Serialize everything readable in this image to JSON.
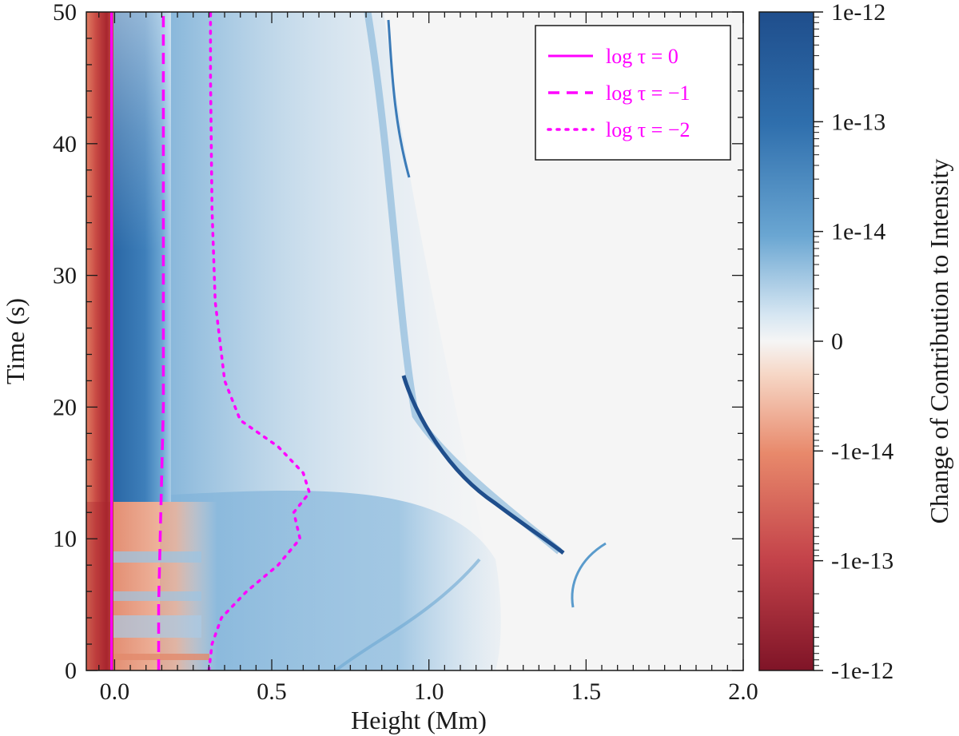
{
  "chart_data": {
    "type": "heatmap",
    "xlabel": "Height (Mm)",
    "ylabel": "Time (s)",
    "xlim": [
      -0.09,
      2.0
    ],
    "ylim": [
      0,
      50
    ],
    "x_ticks": [
      {
        "value": 0.0,
        "label": "0.0"
      },
      {
        "value": 0.5,
        "label": "0.5"
      },
      {
        "value": 1.0,
        "label": "1.0"
      },
      {
        "value": 1.5,
        "label": "1.5"
      },
      {
        "value": 2.0,
        "label": "2.0"
      }
    ],
    "y_ticks": [
      {
        "value": 0,
        "label": "0"
      },
      {
        "value": 10,
        "label": "10"
      },
      {
        "value": 20,
        "label": "20"
      },
      {
        "value": 30,
        "label": "30"
      },
      {
        "value": 40,
        "label": "40"
      },
      {
        "value": 50,
        "label": "50"
      }
    ],
    "colorbar": {
      "label": "Change of Contribution to Intensity",
      "scale": "symlog",
      "ticks": [
        "1e-12",
        "1e-13",
        "1e-14",
        "0",
        "-1e-14",
        "-1e-13",
        "-1e-12"
      ],
      "positive_color": "#1f4e8c",
      "zero_color": "#f5f5f5",
      "negative_color": "#8b1a2b"
    },
    "series": [
      {
        "name": "log τ = 0",
        "style": "solid",
        "color": "#ff00ff",
        "x": [
          -0.01,
          -0.01
        ],
        "y": [
          0,
          50
        ]
      },
      {
        "name": "log τ = −1",
        "style": "dashed",
        "color": "#ff00ff",
        "x": [
          0.14,
          0.14,
          0.145,
          0.15,
          0.155,
          0.155
        ],
        "y": [
          0,
          5,
          10,
          15,
          20,
          50
        ]
      },
      {
        "name": "log τ = −2",
        "style": "dotted",
        "color": "#ff00ff",
        "x": [
          0.3,
          0.31,
          0.34,
          0.42,
          0.52,
          0.59,
          0.57,
          0.62,
          0.6,
          0.52,
          0.4,
          0.35,
          0.32,
          0.31,
          0.305,
          0.305
        ],
        "y": [
          0,
          2,
          4,
          6,
          8,
          10,
          12,
          13.5,
          15,
          17,
          19,
          22,
          28,
          35,
          45,
          50
        ]
      }
    ]
  }
}
